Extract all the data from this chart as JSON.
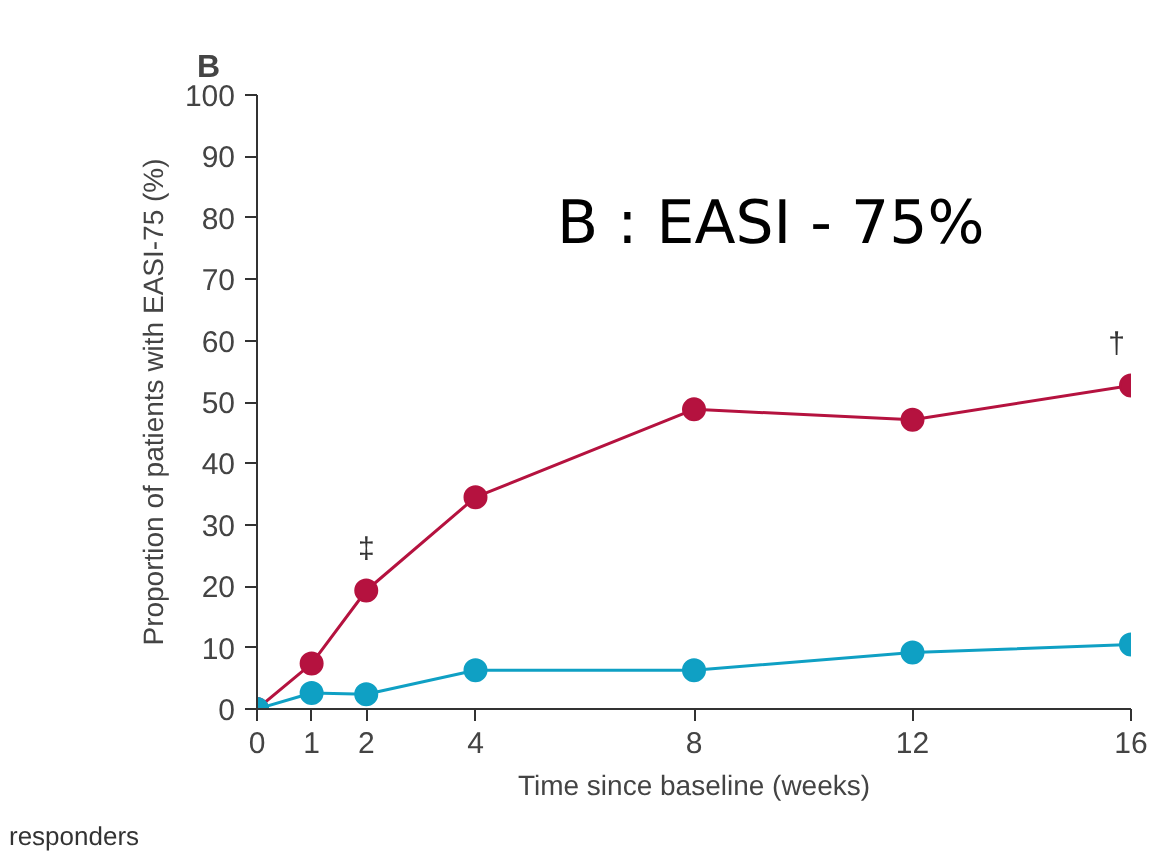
{
  "chart_data": {
    "type": "line",
    "title": "B",
    "xlabel": "Time since baseline (weeks)",
    "ylabel": "Proportion of patients with EASI-75 (%)",
    "x": [
      0,
      1,
      2,
      4,
      8,
      12,
      16
    ],
    "series": [
      {
        "color": "#b5123f",
        "values": [
          0,
          7.4,
          19.3,
          34.5,
          48.8,
          47.1,
          52.7
        ]
      },
      {
        "color": "#0fa0c4",
        "values": [
          0,
          2.6,
          2.4,
          6.3,
          6.3,
          9.2,
          10.5
        ]
      }
    ],
    "xlim": [
      0,
      16
    ],
    "xticks": [
      0,
      1,
      2,
      4,
      8,
      12,
      16
    ],
    "ylim": [
      0,
      100
    ],
    "yticks": [
      0,
      10,
      20,
      30,
      40,
      50,
      60,
      70,
      80,
      90,
      100
    ],
    "grid": false,
    "marker": "circle",
    "line_style": "solid",
    "annotations": [
      "B : EASI - 75%",
      {
        "text": "‡",
        "x": 2,
        "y": 19.3
      },
      {
        "text": "†",
        "x": 16,
        "y": 52.7
      },
      "responders"
    ]
  }
}
